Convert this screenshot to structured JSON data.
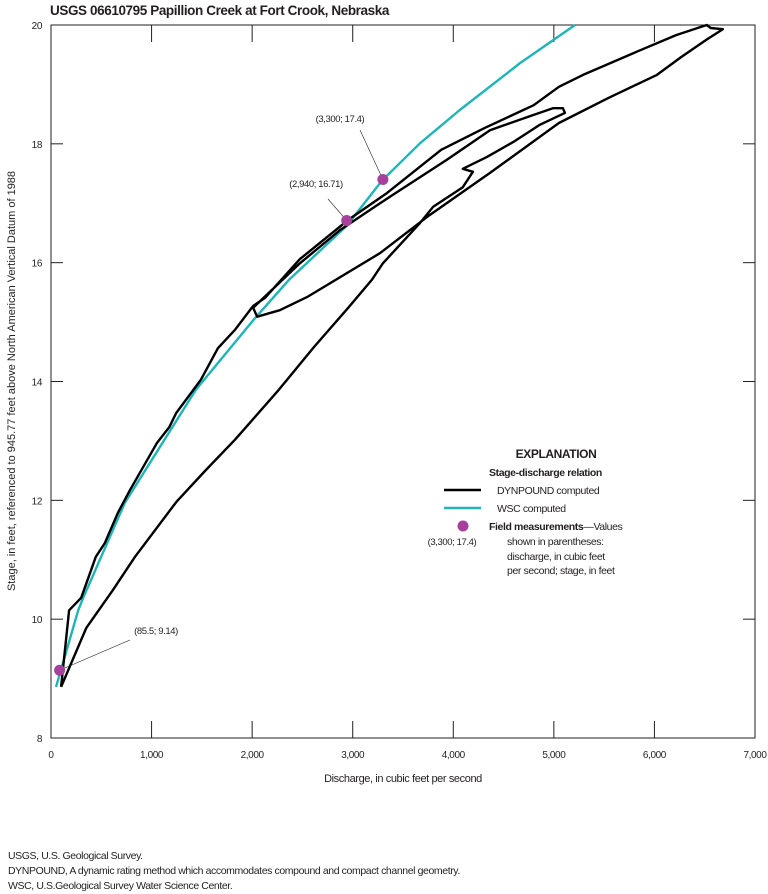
{
  "chart_data": {
    "type": "line",
    "title": "USGS 06610795 Papillion Creek at Fort Crook, Nebraska",
    "xlabel": "Discharge, in cubic feet per second",
    "ylabel": "Stage, in feet, referenced to 945.77 feet above North American Vertical Datum of 1988",
    "xlim": [
      0,
      7000
    ],
    "ylim": [
      8,
      20
    ],
    "x_ticks": [
      0,
      1000,
      2000,
      3000,
      4000,
      5000,
      6000,
      7000
    ],
    "x_tick_labels": [
      "0",
      "1,000",
      "2,000",
      "3,000",
      "4,000",
      "5,000",
      "6,000",
      "7,000"
    ],
    "y_ticks": [
      8,
      10,
      12,
      14,
      16,
      18,
      20
    ],
    "y_tick_labels": [
      "8",
      "10",
      "12",
      "14",
      "16",
      "18",
      "20"
    ],
    "grid": false,
    "series": [
      {
        "name": "DYNPOUND computed",
        "color": "#000000",
        "points": [
          [
            100,
            8.86
          ],
          [
            350,
            9.85
          ],
          [
            615,
            10.49
          ],
          [
            835,
            11.05
          ],
          [
            1245,
            11.97
          ],
          [
            1540,
            12.51
          ],
          [
            1830,
            13.02
          ],
          [
            2265,
            13.86
          ],
          [
            2615,
            14.58
          ],
          [
            2955,
            15.24
          ],
          [
            3190,
            15.71
          ],
          [
            3300,
            15.99
          ],
          [
            3670,
            16.67
          ],
          [
            3800,
            16.94
          ],
          [
            4095,
            17.27
          ],
          [
            4195,
            17.53
          ],
          [
            4095,
            17.58
          ],
          [
            4335,
            17.78
          ],
          [
            4595,
            18.03
          ],
          [
            4860,
            18.32
          ],
          [
            5110,
            18.52
          ],
          [
            5090,
            18.6
          ],
          [
            4990,
            18.6
          ],
          [
            4735,
            18.45
          ],
          [
            4365,
            18.23
          ],
          [
            3935,
            17.73
          ],
          [
            3370,
            17.11
          ],
          [
            2875,
            16.55
          ],
          [
            2475,
            15.99
          ],
          [
            2010,
            15.24
          ],
          [
            2050,
            15.09
          ],
          [
            2275,
            15.2
          ],
          [
            2545,
            15.42
          ],
          [
            3270,
            16.16
          ],
          [
            3740,
            16.77
          ],
          [
            4365,
            17.51
          ],
          [
            5050,
            18.35
          ],
          [
            5540,
            18.77
          ],
          [
            6025,
            19.16
          ],
          [
            6265,
            19.46
          ],
          [
            6515,
            19.75
          ],
          [
            6680,
            19.93
          ],
          [
            6560,
            19.95
          ],
          [
            6520,
            20.0
          ],
          [
            6215,
            19.83
          ],
          [
            5825,
            19.55
          ],
          [
            5290,
            19.16
          ],
          [
            5050,
            18.96
          ],
          [
            4800,
            18.65
          ],
          [
            4315,
            18.27
          ],
          [
            3880,
            17.9
          ],
          [
            3340,
            17.17
          ],
          [
            2955,
            16.72
          ],
          [
            2475,
            16.06
          ],
          [
            2130,
            15.41
          ],
          [
            2010,
            15.27
          ],
          [
            1830,
            14.87
          ],
          [
            1660,
            14.56
          ],
          [
            1490,
            14.03
          ],
          [
            1245,
            13.47
          ],
          [
            1175,
            13.23
          ],
          [
            1055,
            12.97
          ],
          [
            785,
            12.17
          ],
          [
            665,
            11.79
          ],
          [
            535,
            11.28
          ],
          [
            445,
            11.05
          ],
          [
            300,
            10.36
          ],
          [
            180,
            10.15
          ],
          [
            100,
            8.86
          ]
        ]
      },
      {
        "name": "WSC computed",
        "color": "#1fb5b8",
        "points": [
          [
            50,
            8.86
          ],
          [
            270,
            10.15
          ],
          [
            320,
            10.36
          ],
          [
            735,
            11.96
          ],
          [
            1440,
            13.86
          ],
          [
            2030,
            15.07
          ],
          [
            2365,
            15.71
          ],
          [
            2940,
            16.62
          ],
          [
            3290,
            17.38
          ],
          [
            3670,
            18.01
          ],
          [
            4065,
            18.57
          ],
          [
            4665,
            19.36
          ],
          [
            5210,
            20.0
          ]
        ]
      }
    ],
    "field_measurements": {
      "name": "Field measurements",
      "color": "#a6409b",
      "points": [
        {
          "x": 85.5,
          "y": 9.14,
          "label": "(85.5; 9.14)"
        },
        {
          "x": 2940,
          "y": 16.71,
          "label": "(2,940; 16.71)"
        },
        {
          "x": 3300,
          "y": 17.4,
          "label": "(3,300; 17.4)"
        }
      ]
    },
    "legend": {
      "placement": "right",
      "title": "EXPLANATION",
      "group_title": "Stage-discharge relation",
      "dynpound": "DYNPOUND computed",
      "wsc": "WSC computed",
      "field_bold": "Field measurements",
      "field_rest": "—Values",
      "field_lines": [
        "shown in parentheses:",
        "discharge, in cubic feet",
        "per second; stage, in feet"
      ],
      "example_label": "(3,300; 17.4)"
    }
  },
  "footnotes": [
    "USGS, U.S. Geological Survey.",
    "DYNPOUND, A dynamic rating method which accommodates compound and compact channel geometry.",
    "WSC, U.S.Geological Survey Water Science Center."
  ]
}
